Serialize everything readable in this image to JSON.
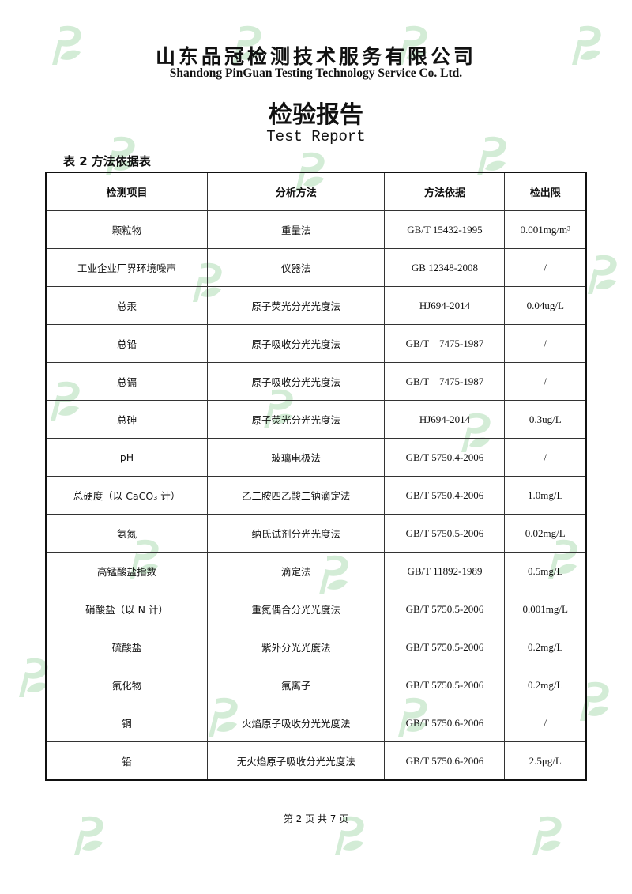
{
  "header": {
    "company_cn": "山东品冠检测技术服务有限公司",
    "company_en": "Shandong PinGuan Testing Technology Service Co. Ltd.",
    "title_cn": "检验报告",
    "title_en": "Test Report"
  },
  "table": {
    "caption": "表 2 方法依据表",
    "columns": [
      "检测项目",
      "分析方法",
      "方法依据",
      "检出限"
    ],
    "rows": [
      [
        "颗粒物",
        "重量法",
        "GB/T 15432-1995",
        "0.001mg/m³"
      ],
      [
        "工业企业厂界环境噪声",
        "仪器法",
        "GB 12348-2008",
        "/"
      ],
      [
        "总汞",
        "原子荧光分光光度法",
        "HJ694-2014",
        "0.04ug/L"
      ],
      [
        "总铅",
        "原子吸收分光光度法",
        "GB/T    7475-1987",
        "/"
      ],
      [
        "总镉",
        "原子吸收分光光度法",
        "GB/T    7475-1987",
        "/"
      ],
      [
        "总砷",
        "原子荧光分光光度法",
        "HJ694-2014",
        "0.3ug/L"
      ],
      [
        "pH",
        "玻璃电极法",
        "GB/T 5750.4-2006",
        "/"
      ],
      [
        "总硬度（以 CaCO₃ 计）",
        "乙二胺四乙酸二钠滴定法",
        "GB/T 5750.4-2006",
        "1.0mg/L"
      ],
      [
        "氨氮",
        "纳氏试剂分光光度法",
        "GB/T 5750.5-2006",
        "0.02mg/L"
      ],
      [
        "高锰酸盐指数",
        "滴定法",
        "GB/T 11892-1989",
        "0.5mg/L"
      ],
      [
        "硝酸盐（以 N 计）",
        "重氮偶合分光光度法",
        "GB/T 5750.5-2006",
        "0.001mg/L"
      ],
      [
        "硫酸盐",
        "紫外分光光度法",
        "GB/T 5750.5-2006",
        "0.2mg/L"
      ],
      [
        "氟化物",
        "氟离子",
        "GB/T 5750.5-2006",
        "0.2mg/L"
      ],
      [
        "铜",
        "火焰原子吸收分光光度法",
        "GB/T 5750.6-2006",
        "/"
      ],
      [
        "铅",
        "无火焰原子吸收分光光度法",
        "GB/T 5750.6-2006",
        "2.5μg/L"
      ]
    ]
  },
  "footer": {
    "page": "第 2 页 共 7 页"
  },
  "watermark": {
    "glyph": "P",
    "color": "#d3ecd6"
  }
}
